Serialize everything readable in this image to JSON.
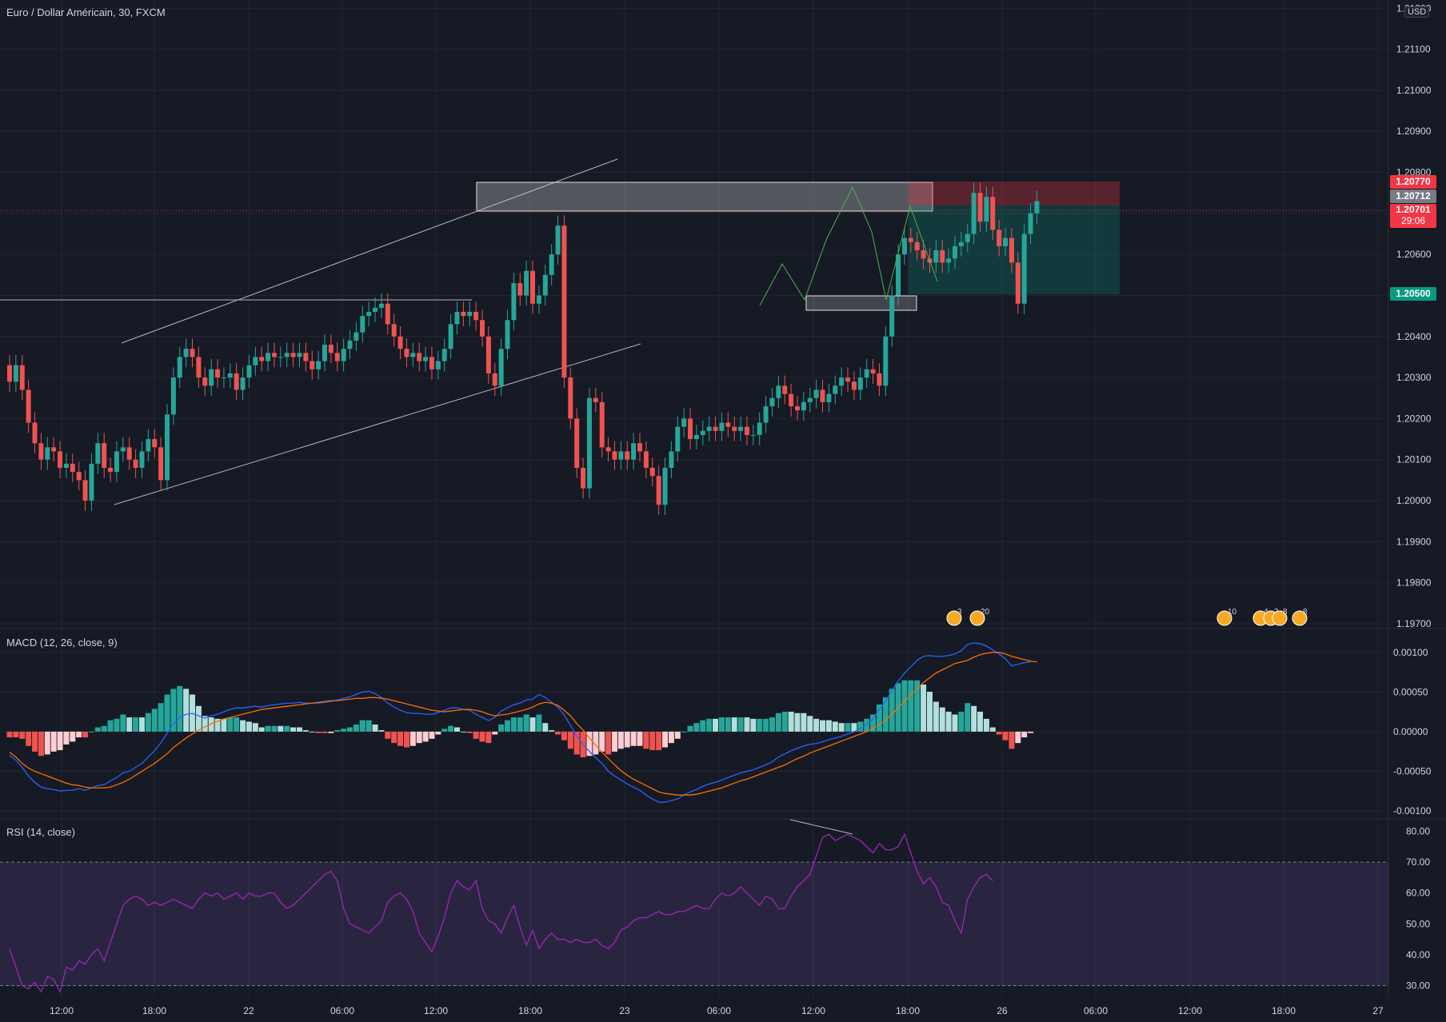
{
  "symbol": {
    "title": "Euro / Dollar Américain, 30, FXCM"
  },
  "currency": "USD",
  "colors": {
    "up": "#26a69a",
    "down": "#ef5350",
    "grid": "#232734",
    "macd": "#2962ff",
    "signal": "#ff6d00",
    "rsi": "#9c27b0",
    "text": "#d1d4dc"
  },
  "price_tags": {
    "stop": {
      "value": "1.20770",
      "color": "#f23645"
    },
    "last_mark": {
      "value": "1.20712",
      "color": "#787b86"
    },
    "current": {
      "value": "1.20701",
      "countdown": "29:06",
      "color": "#f23645"
    },
    "target": {
      "value": "1.20500",
      "color": "#089981"
    }
  },
  "event_markers": [
    {
      "label": "3",
      "icon": "us-flag-icon"
    },
    {
      "label": "20",
      "icon": "eu-flag-icon"
    },
    {
      "label": "10",
      "icon": "eu-flag-icon"
    },
    {
      "label": "4",
      "icon": "eu-flag-icon"
    },
    {
      "label": "3",
      "icon": "us-flag-icon"
    },
    {
      "label": "8",
      "icon": "us-flag-icon"
    },
    {
      "label": "8",
      "icon": "us-flag-icon"
    }
  ],
  "chart_data": [
    {
      "type": "candlestick",
      "title": "Euro / Dollar Américain, 30, FXCM",
      "ylim": [
        1.197,
        1.2122
      ],
      "y_ticks": [
        "1.21200",
        "1.21100",
        "1.21000",
        "1.20900",
        "1.20800",
        "1.20700",
        "1.20600",
        "1.20500",
        "1.20400",
        "1.20300",
        "1.20200",
        "1.20100",
        "1.20000",
        "1.19900",
        "1.19800",
        "1.19700"
      ],
      "x_ticks": [
        "12:00",
        "18:00",
        "22",
        "06:00",
        "12:00",
        "18:00",
        "23",
        "06:00",
        "12:00",
        "18:00",
        "26",
        "06:00",
        "12:00",
        "18:00",
        "27"
      ],
      "close": [
        1.2029,
        1.2033,
        1.2027,
        1.2019,
        1.2014,
        1.201,
        1.2013,
        1.2012,
        1.2008,
        1.2009,
        1.2007,
        1.2005,
        1.2,
        1.2009,
        1.2014,
        1.2008,
        1.2007,
        1.2012,
        1.2013,
        1.201,
        1.2008,
        1.2012,
        1.2015,
        1.2013,
        1.2005,
        1.2021,
        1.203,
        1.2035,
        1.2037,
        1.2035,
        1.203,
        1.2028,
        1.2032,
        1.203,
        1.203,
        1.2031,
        1.2027,
        1.203,
        1.2033,
        1.2035,
        1.2034,
        1.2036,
        1.2035,
        1.2035,
        1.2036,
        1.2035,
        1.2036,
        1.2034,
        1.2032,
        1.2034,
        1.2038,
        1.2036,
        1.2034,
        1.2037,
        1.2039,
        1.2041,
        1.2045,
        1.2046,
        1.2047,
        1.2048,
        1.2043,
        1.204,
        1.2037,
        1.2035,
        1.2036,
        1.2034,
        1.2035,
        1.2032,
        1.2034,
        1.2037,
        1.2043,
        1.2046,
        1.2045,
        1.2046,
        1.2044,
        1.204,
        1.2031,
        1.2028,
        1.2037,
        1.2044,
        1.2053,
        1.205,
        1.2056,
        1.2048,
        1.205,
        1.2055,
        1.206,
        1.2067,
        1.203,
        1.202,
        1.2008,
        1.2003,
        1.2025,
        1.2024,
        1.2013,
        1.2012,
        1.201,
        1.2012,
        1.201,
        1.2014,
        1.2012,
        1.2008,
        1.2006,
        1.1999,
        1.2008,
        1.2012,
        1.2018,
        1.202,
        1.2015,
        1.2016,
        1.2017,
        1.2018,
        1.2017,
        1.2019,
        1.2018,
        1.2017,
        1.2018,
        1.2016,
        1.2016,
        1.2019,
        1.2023,
        1.2025,
        1.2028,
        1.2026,
        1.2023,
        1.2022,
        1.2024,
        1.2025,
        1.2027,
        1.2024,
        1.2026,
        1.2028,
        1.203,
        1.2029,
        1.2027,
        1.203,
        1.2032,
        1.2031,
        1.2028,
        1.204,
        1.205,
        1.206,
        1.2064,
        1.2063,
        1.2061,
        1.2059,
        1.2058,
        1.2061,
        1.2058,
        1.2059,
        1.2062,
        1.2063,
        1.2065,
        1.2075,
        1.2068,
        1.2074,
        1.2066,
        1.2062,
        1.2064,
        1.2058,
        1.2048,
        1.2065,
        1.207,
        1.2073
      ],
      "series": [
        {
          "name": "",
          "values": []
        }
      ]
    },
    {
      "type": "line",
      "title": "MACD (12, 26, close, 9)",
      "ylim": [
        -0.001,
        0.0012
      ],
      "y_ticks": [
        "0.00100",
        "0.00050",
        "0.00000",
        "-0.00050",
        "-0.00100"
      ],
      "series": [
        {
          "name": "",
          "role": "macd",
          "values": [
            -0.0003,
            -0.00036,
            -0.00045,
            -0.00056,
            -0.00064,
            -0.0007,
            -0.00072,
            -0.00073,
            -0.00075,
            -0.00074,
            -0.00074,
            -0.00072,
            -0.00074,
            -0.00071,
            -0.00068,
            -0.00067,
            -0.00062,
            -0.00058,
            -0.00052,
            -0.0005,
            -0.00045,
            -0.0004,
            -0.00032,
            -0.00024,
            -0.00014,
            -2e-05,
            0.0001,
            0.00018,
            0.00022,
            0.00023,
            0.0002,
            0.00017,
            0.0002,
            0.00022,
            0.00025,
            0.00028,
            0.0003,
            0.0003,
            0.00031,
            0.00032,
            0.00031,
            0.00033,
            0.00034,
            0.00035,
            0.00036,
            0.00036,
            0.00037,
            0.00036,
            0.00036,
            0.00036,
            0.00037,
            0.00038,
            0.0004,
            0.00042,
            0.00044,
            0.00047,
            0.0005,
            0.00051,
            0.00048,
            0.00043,
            0.00036,
            0.00031,
            0.00027,
            0.00024,
            0.00023,
            0.00023,
            0.00022,
            0.00022,
            0.00024,
            0.00027,
            0.0003,
            0.0003,
            0.00028,
            0.00027,
            0.00022,
            0.00018,
            0.00014,
            0.00018,
            0.00026,
            0.0003,
            0.00034,
            0.00036,
            0.0004,
            0.00041,
            0.00047,
            0.00043,
            0.00037,
            0.00031,
            0.00021,
            8e-05,
            -6e-05,
            -0.00016,
            -0.00025,
            -0.00033,
            -0.0004,
            -0.0005,
            -0.00056,
            -0.00061,
            -0.00066,
            -0.0007,
            -0.00074,
            -0.0008,
            -0.00085,
            -0.00089,
            -0.00089,
            -0.00087,
            -0.00085,
            -0.0008,
            -0.00076,
            -0.00073,
            -0.00069,
            -0.00066,
            -0.00064,
            -0.00061,
            -0.00058,
            -0.00055,
            -0.00052,
            -0.0005,
            -0.00048,
            -0.00045,
            -0.00042,
            -0.00038,
            -0.00032,
            -0.00028,
            -0.00024,
            -0.00021,
            -0.00018,
            -0.00016,
            -0.00015,
            -0.00013,
            -0.0001,
            -8e-05,
            -6e-05,
            -3e-05,
            0.0,
            4e-05,
            9e-05,
            0.00016,
            0.00028,
            0.00038,
            0.00052,
            0.00064,
            0.00074,
            0.00082,
            0.0009,
            0.00095,
            0.00096,
            0.00095,
            0.00095,
            0.00096,
            0.00098,
            0.00102,
            0.0011,
            0.00112,
            0.00111,
            0.00108,
            0.00103,
            0.00098,
            0.00092,
            0.00083,
            0.00085,
            0.00087,
            0.00088
          ]
        },
        {
          "name": "",
          "role": "signal",
          "values": [
            -0.00026,
            -0.00032,
            -0.0004,
            -0.00046,
            -0.0005,
            -0.00053,
            -0.00056,
            -0.00059,
            -0.00062,
            -0.00065,
            -0.00067,
            -0.00068,
            -0.0007,
            -0.00071,
            -0.00071,
            -0.00071,
            -0.0007,
            -0.00067,
            -0.00064,
            -0.0006,
            -0.00055,
            -0.0005,
            -0.00045,
            -0.0004,
            -0.00034,
            -0.00028,
            -0.0002,
            -0.00014,
            -8e-05,
            -3e-05,
            2e-05,
            6e-05,
            0.0001,
            0.00013,
            0.00016,
            0.00018,
            0.0002,
            0.00022,
            0.00024,
            0.00026,
            0.00028,
            0.00029,
            0.0003,
            0.00031,
            0.00032,
            0.00033,
            0.00034,
            0.00035,
            0.00036,
            0.00037,
            0.00038,
            0.00039,
            0.00039,
            0.0004,
            0.00041,
            0.00042,
            0.00042,
            0.00043,
            0.00043,
            0.00042,
            0.00041,
            0.00039,
            0.00037,
            0.00035,
            0.00033,
            0.00031,
            0.00029,
            0.00027,
            0.00026,
            0.00025,
            0.00026,
            0.00027,
            0.00028,
            0.00028,
            0.00027,
            0.00025,
            0.00022,
            0.0002,
            0.00021,
            0.00022,
            0.00024,
            0.00026,
            0.00028,
            0.00031,
            0.00035,
            0.00037,
            0.00036,
            0.00033,
            0.00027,
            0.0002,
            0.0001,
            2e-05,
            -8e-05,
            -0.00017,
            -0.00026,
            -0.00034,
            -0.00042,
            -0.00049,
            -0.00055,
            -0.0006,
            -0.00064,
            -0.00068,
            -0.00072,
            -0.00076,
            -0.00078,
            -0.00079,
            -0.0008,
            -0.0008,
            -0.0008,
            -0.00079,
            -0.00077,
            -0.00075,
            -0.00073,
            -0.00071,
            -0.00068,
            -0.00065,
            -0.00062,
            -0.0006,
            -0.00057,
            -0.00054,
            -0.00051,
            -0.00048,
            -0.00045,
            -0.00042,
            -0.00038,
            -0.00034,
            -0.00031,
            -0.00027,
            -0.00024,
            -0.00021,
            -0.00018,
            -0.00015,
            -0.00012,
            -9e-05,
            -6e-05,
            -3e-05,
            0.0,
            4e-05,
            9e-05,
            0.00014,
            0.00022,
            0.0003,
            0.00038,
            0.00046,
            0.00054,
            0.00062,
            0.00068,
            0.00074,
            0.00078,
            0.00082,
            0.00086,
            0.00088,
            0.0009,
            0.00094,
            0.00097,
            0.00099,
            0.001,
            0.001,
            0.00098,
            0.00095,
            0.00093,
            0.00091,
            0.00089,
            0.00088
          ]
        }
      ]
    },
    {
      "type": "line",
      "title": "RSI (14, close)",
      "ylim": [
        26,
        84
      ],
      "y_ticks": [
        "80.00",
        "70.00",
        "60.00",
        "50.00",
        "40.00",
        "30.00"
      ],
      "bands": [
        30,
        70
      ],
      "series": [
        {
          "name": "",
          "values": [
            42,
            36,
            30,
            29,
            31,
            28,
            33,
            32,
            28,
            36,
            35,
            38,
            37,
            40,
            42,
            38,
            44,
            50,
            56,
            58,
            59,
            58,
            56,
            57,
            56,
            57,
            58,
            57,
            56,
            55,
            58,
            60,
            59,
            60,
            58,
            59,
            60,
            58,
            60,
            59,
            59,
            60,
            60,
            57,
            55,
            56,
            58,
            60,
            62,
            64,
            66,
            67,
            64,
            55,
            50,
            49,
            48,
            47,
            49,
            51,
            57,
            59,
            60,
            58,
            54,
            47,
            44,
            41,
            46,
            52,
            60,
            64,
            62,
            61,
            64,
            55,
            51,
            50,
            47,
            52,
            56,
            49,
            43,
            48,
            42,
            45,
            47,
            45,
            45,
            44,
            45,
            44,
            44,
            45,
            43,
            42,
            44,
            48,
            49,
            51,
            52,
            52,
            53,
            54,
            53,
            53,
            54,
            54,
            55,
            56,
            55,
            55,
            58,
            60,
            59,
            60,
            62,
            60,
            58,
            56,
            59,
            58,
            55,
            55,
            59,
            62,
            64,
            66,
            72,
            78,
            79,
            77,
            78,
            79,
            78,
            77,
            75,
            73,
            76,
            74,
            74,
            75,
            79,
            73,
            67,
            63,
            65,
            62,
            57,
            56,
            51,
            47,
            58,
            62,
            65,
            66,
            64
          ]
        }
      ]
    }
  ]
}
